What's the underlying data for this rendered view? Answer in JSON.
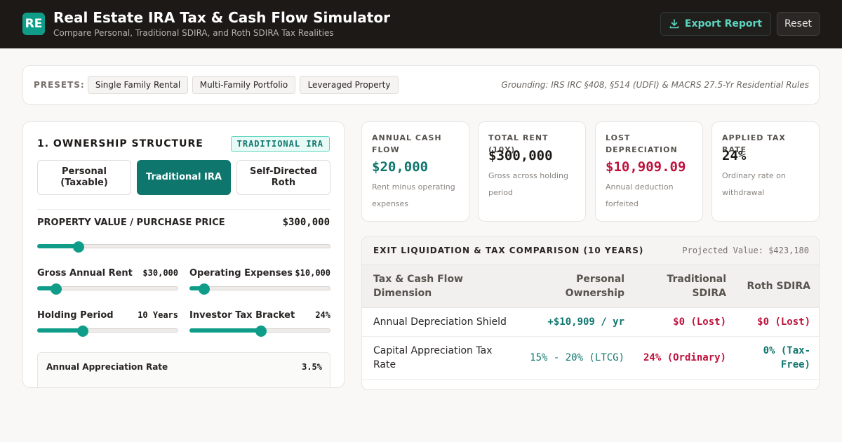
{
  "header": {
    "logo_text": "RE",
    "title": "Real Estate IRA Tax & Cash Flow Simulator",
    "subtitle": "Compare Personal, Traditional SDIRA, and Roth SDIRA Tax Realities",
    "export_label": "Export Report",
    "export_icon": "download-icon",
    "reset_label": "Reset"
  },
  "presets": {
    "label": "PRESETS:",
    "items": [
      "Single Family Rental",
      "Multi-Family Portfolio",
      "Leveraged Property"
    ],
    "grounding": "Grounding: IRS IRC §408, §514 (UDFI) & MACRS 27.5-Yr Residential Rules"
  },
  "ownership": {
    "title": "1. OWNERSHIP STRUCTURE",
    "badge": "TRADITIONAL IRA",
    "options": [
      "Personal (Taxable)",
      "Traditional IRA",
      "Self-Directed Roth"
    ],
    "selected": "Traditional IRA"
  },
  "inputs": {
    "property_value": {
      "label": "PROPERTY VALUE / PURCHASE PRICE",
      "value": "$300,000",
      "level": 0.14
    },
    "gross_rent": {
      "label": "Gross Annual Rent",
      "value": "$30,000",
      "level": 0.13
    },
    "operating_expenses": {
      "label": "Operating Expenses",
      "value": "$10,000",
      "level": 0.1
    },
    "holding_period": {
      "label": "Holding Period",
      "value": "10 Years",
      "level": 0.32
    },
    "tax_bracket": {
      "label": "Investor Tax Bracket",
      "value": "24%",
      "level": 0.51
    },
    "appreciation": {
      "label": "Annual Appreciation Rate",
      "value": "3.5%"
    }
  },
  "kpis": [
    {
      "label": "ANNUAL CASH FLOW",
      "value": "$20,000",
      "note": "Rent minus operating expenses",
      "color": "#0f766e"
    },
    {
      "label": "TOTAL RENT (10Y)",
      "value": "$300,000",
      "note": "Gross across holding period",
      "color": "#1c1917"
    },
    {
      "label": "LOST DEPRECIATION",
      "value": "$10,909.09",
      "note": "Annual deduction forfeited",
      "color": "#be123c"
    },
    {
      "label": "APPLIED TAX RATE",
      "value": "24%",
      "note": "Ordinary rate on withdrawal",
      "color": "#1c1917"
    }
  ],
  "comparison": {
    "title": "EXIT LIQUIDATION & TAX COMPARISON (10 YEARS)",
    "projected": "Projected Value: $423,180",
    "columns": [
      "Tax & Cash Flow Dimension",
      "Personal Ownership",
      "Traditional SDIRA",
      "Roth SDIRA"
    ],
    "rows": [
      {
        "dimension": "Annual Depreciation Shield",
        "personal": "+$10,909 / yr",
        "traditional": "$0 (Lost)",
        "roth": "$0 (Lost)"
      },
      {
        "dimension": "Capital Appreciation Tax Rate",
        "personal": "15% - 20% (LTCG)",
        "traditional": "24% (Ordinary)",
        "roth": "0% (Tax-Free)"
      }
    ]
  },
  "colors": {
    "accent": "#0f9d8a",
    "accent_dark": "#0f766e",
    "negative": "#be123c",
    "header_bg": "#1c1917"
  }
}
